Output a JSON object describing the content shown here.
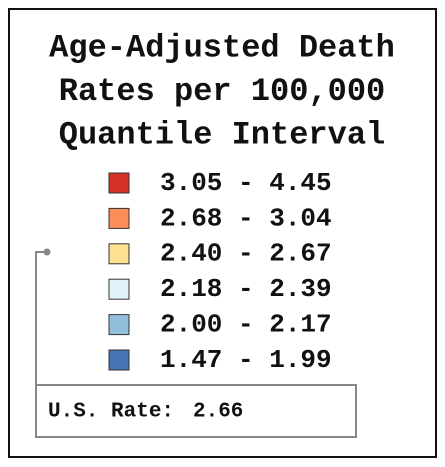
{
  "legend": {
    "title_lines": [
      "Age-Adjusted Death",
      "Rates per 100,000",
      "Quantile Interval"
    ],
    "items": [
      {
        "color": "#d73027",
        "label": "3.05 - 4.45"
      },
      {
        "color": "#fc8d59",
        "label": "2.68 - 3.04"
      },
      {
        "color": "#fee090",
        "label": "2.40 - 2.67"
      },
      {
        "color": "#e0f3f8",
        "label": "2.18 - 2.39"
      },
      {
        "color": "#91bfdb",
        "label": "2.00 - 2.17"
      },
      {
        "color": "#4575b4",
        "label": "1.47 - 1.99"
      }
    ],
    "us_rate": {
      "label": "U.S. Rate:",
      "value": "2.66"
    }
  }
}
